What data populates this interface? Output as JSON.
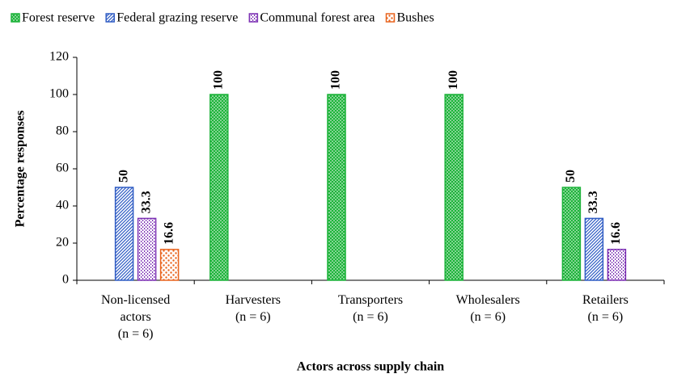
{
  "chart_data": {
    "type": "bar",
    "x_label": "Actors across supply chain",
    "y_label": "Percentage responses",
    "categories": [
      "Non-licensed\nactors\n(n = 6)",
      "Harvesters\n(n = 6)",
      "Transporters\n(n = 6)",
      "Wholesalers\n(n = 6)",
      "Retailers\n(n = 6)"
    ],
    "series": [
      {
        "name": "Forest reserve",
        "color": "#1db33a",
        "values": [
          null,
          100,
          100,
          100,
          50
        ]
      },
      {
        "name": "Federal grazing reserve",
        "color": "#2f5cc4",
        "values": [
          50,
          null,
          null,
          null,
          33.3
        ]
      },
      {
        "name": "Communal forest area",
        "color": "#7b2fb3",
        "values": [
          33.3,
          null,
          null,
          null,
          16.6
        ]
      },
      {
        "name": "Bushes",
        "color": "#e8641e",
        "values": [
          16.6,
          null,
          null,
          null,
          null
        ]
      }
    ],
    "ylim": [
      0,
      120
    ],
    "yticks": [
      0,
      20,
      40,
      60,
      80,
      100,
      120
    ],
    "legend": "top",
    "grid": false
  }
}
